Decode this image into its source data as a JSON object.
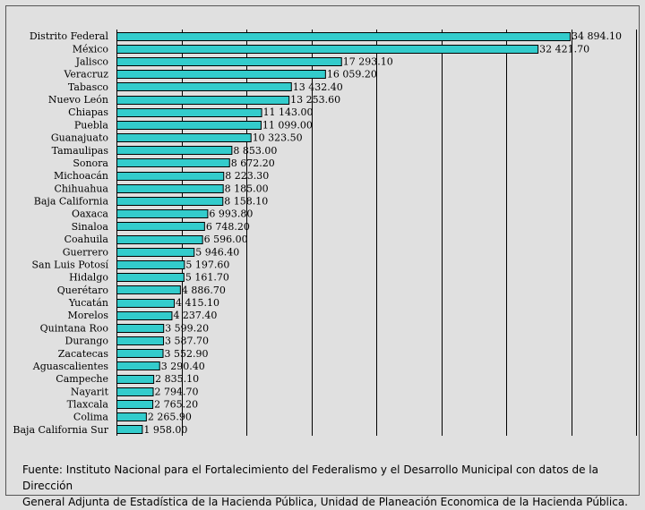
{
  "chart_data": {
    "type": "bar",
    "orientation": "horizontal",
    "categories": [
      "Distrito Federal",
      "México",
      "Jalisco",
      "Veracruz",
      "Tabasco",
      "Nuevo León",
      "Chiapas",
      "Puebla",
      "Guanajuato",
      "Tamaulipas",
      "Sonora",
      "Michoacán",
      "Chihuahua",
      "Baja California",
      "Oaxaca",
      "Sinaloa",
      "Coahuila",
      "Guerrero",
      "San Luis Potosí",
      "Hidalgo",
      "Querétaro",
      "Yucatán",
      "Morelos",
      "Quintana Roo",
      "Durango",
      "Zacatecas",
      "Aguascalientes",
      "Campeche",
      "Nayarit",
      "Tlaxcala",
      "Colima",
      "Baja California Sur"
    ],
    "values": [
      34894.1,
      32421.7,
      17293.1,
      16059.2,
      13432.4,
      13253.6,
      11143.0,
      11099.0,
      10323.5,
      8853.0,
      8672.2,
      8223.3,
      8185.0,
      8158.1,
      6993.8,
      6748.2,
      6596.0,
      5946.4,
      5197.6,
      5161.7,
      4886.7,
      4415.1,
      4237.4,
      3599.2,
      3587.7,
      3552.9,
      3290.4,
      2835.1,
      2794.7,
      2765.2,
      2265.9,
      1958.0
    ],
    "value_labels": [
      "34 894.10",
      "32 421.70",
      "17 293.10",
      "16 059.20",
      "13 432.40",
      "13 253.60",
      "11 143.00",
      "11 099.00",
      "10 323.50",
      "8 853.00",
      "8 672.20",
      "8 223.30",
      "8 185.00",
      "8 158.10",
      "6 993.80",
      "6 748.20",
      "6 596.00",
      "5 946.40",
      "5 197.60",
      "5 161.70",
      "4 886.70",
      "4 415.10",
      "4 237.40",
      "3 599.20",
      "3 587.70",
      "3 552.90",
      "3 290.40",
      "2 835.10",
      "2 794.70",
      "2 765.20",
      "2 265.90",
      "1 958.00"
    ],
    "xlim": [
      0,
      40000
    ],
    "grid_step": 5000,
    "grid": true,
    "bar_color": "#33cccc"
  },
  "caption": {
    "line1": "Fuente: Instituto Nacional para el Fortalecimiento del Federalismo y el Desarrollo Municipal con datos de la Dirección",
    "line2": "General Adjunta de Estadística de la Hacienda Pública, Unidad de Planeación Economica de la Hacienda Pública."
  }
}
